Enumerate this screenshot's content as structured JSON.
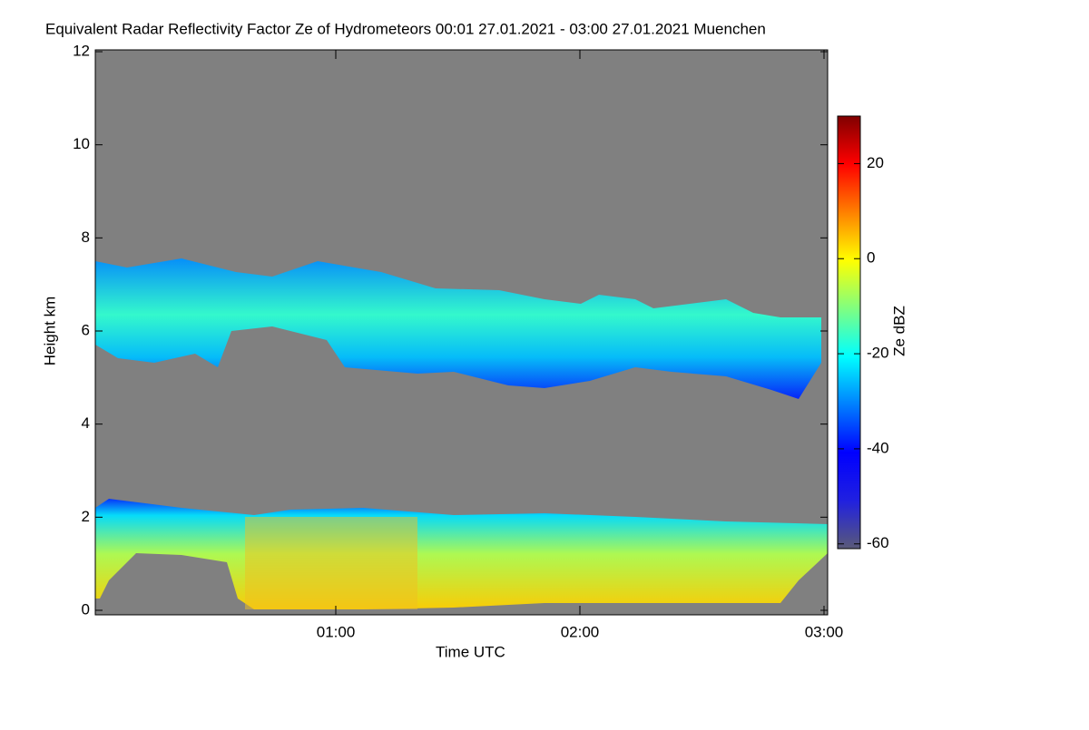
{
  "chart_data": {
    "type": "heatmap",
    "title": "Equivalent Radar Reflectivity Factor Ze of Hydrometeors   00:01 27.01.2021 - 03:00 27.01.2021 Muenchen",
    "xlabel": "Time UTC",
    "ylabel": "Height km",
    "xlim": [
      1,
      180
    ],
    "xticks": [
      {
        "value": 60,
        "label": "01:00"
      },
      {
        "value": 120,
        "label": "02:00"
      },
      {
        "value": 180,
        "label": "03:00"
      }
    ],
    "ylim": [
      0,
      12
    ],
    "yticks": [
      0,
      2,
      4,
      6,
      8,
      10,
      12
    ],
    "background": "#808080",
    "colorbar": {
      "label": "Ze dBZ",
      "lim": [
        -61,
        30
      ],
      "ticks": [
        -60,
        -40,
        -20,
        0,
        20
      ],
      "colors": [
        "#5a5a78",
        "#2020e0",
        "#0000ff",
        "#0080ff",
        "#00ffff",
        "#80ff80",
        "#ffff00",
        "#ff8000",
        "#ff0000",
        "#800000"
      ]
    }
  }
}
